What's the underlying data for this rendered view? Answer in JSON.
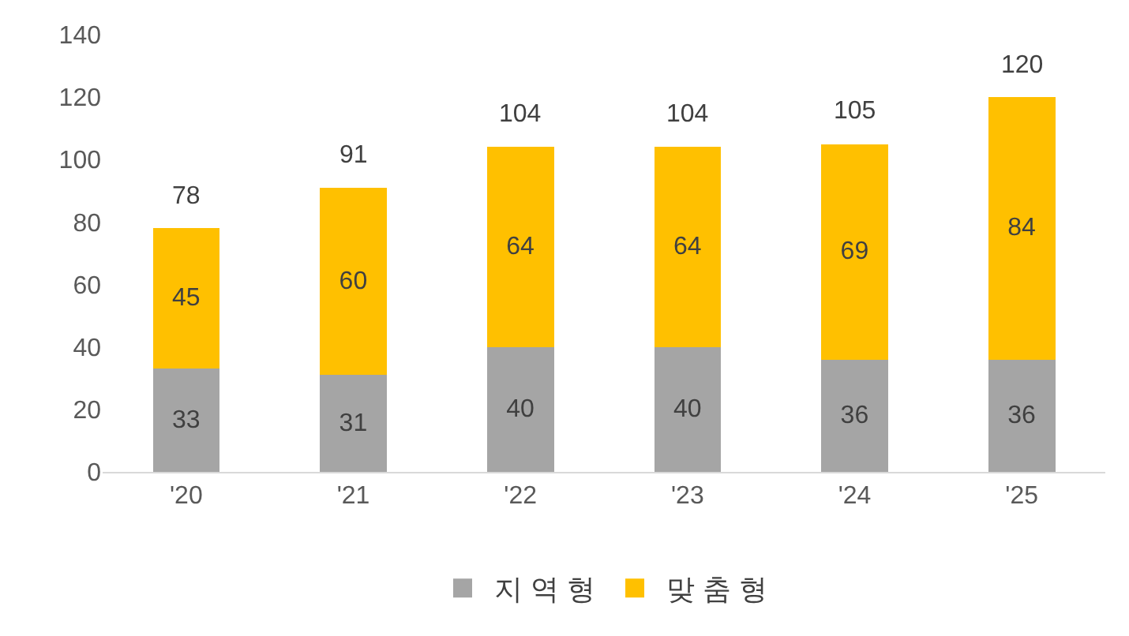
{
  "chart_data": {
    "type": "bar",
    "stacked": true,
    "categories": [
      "'20",
      "'21",
      "'22",
      "'23",
      "'24",
      "'25"
    ],
    "series": [
      {
        "name": "지 역 형",
        "color": "#a5a5a5",
        "values": [
          33,
          31,
          40,
          40,
          36,
          36
        ]
      },
      {
        "name": "맞 춤 형",
        "color": "#ffc000",
        "values": [
          45,
          60,
          64,
          64,
          69,
          84
        ]
      }
    ],
    "totals": [
      "78",
      "91",
      "104",
      "104",
      "105",
      "120"
    ],
    "data_labels": true,
    "ylim": [
      0,
      140
    ],
    "yticks": [
      0,
      20,
      40,
      60,
      80,
      100,
      120,
      140
    ],
    "grid": false,
    "legend": "bottom"
  }
}
